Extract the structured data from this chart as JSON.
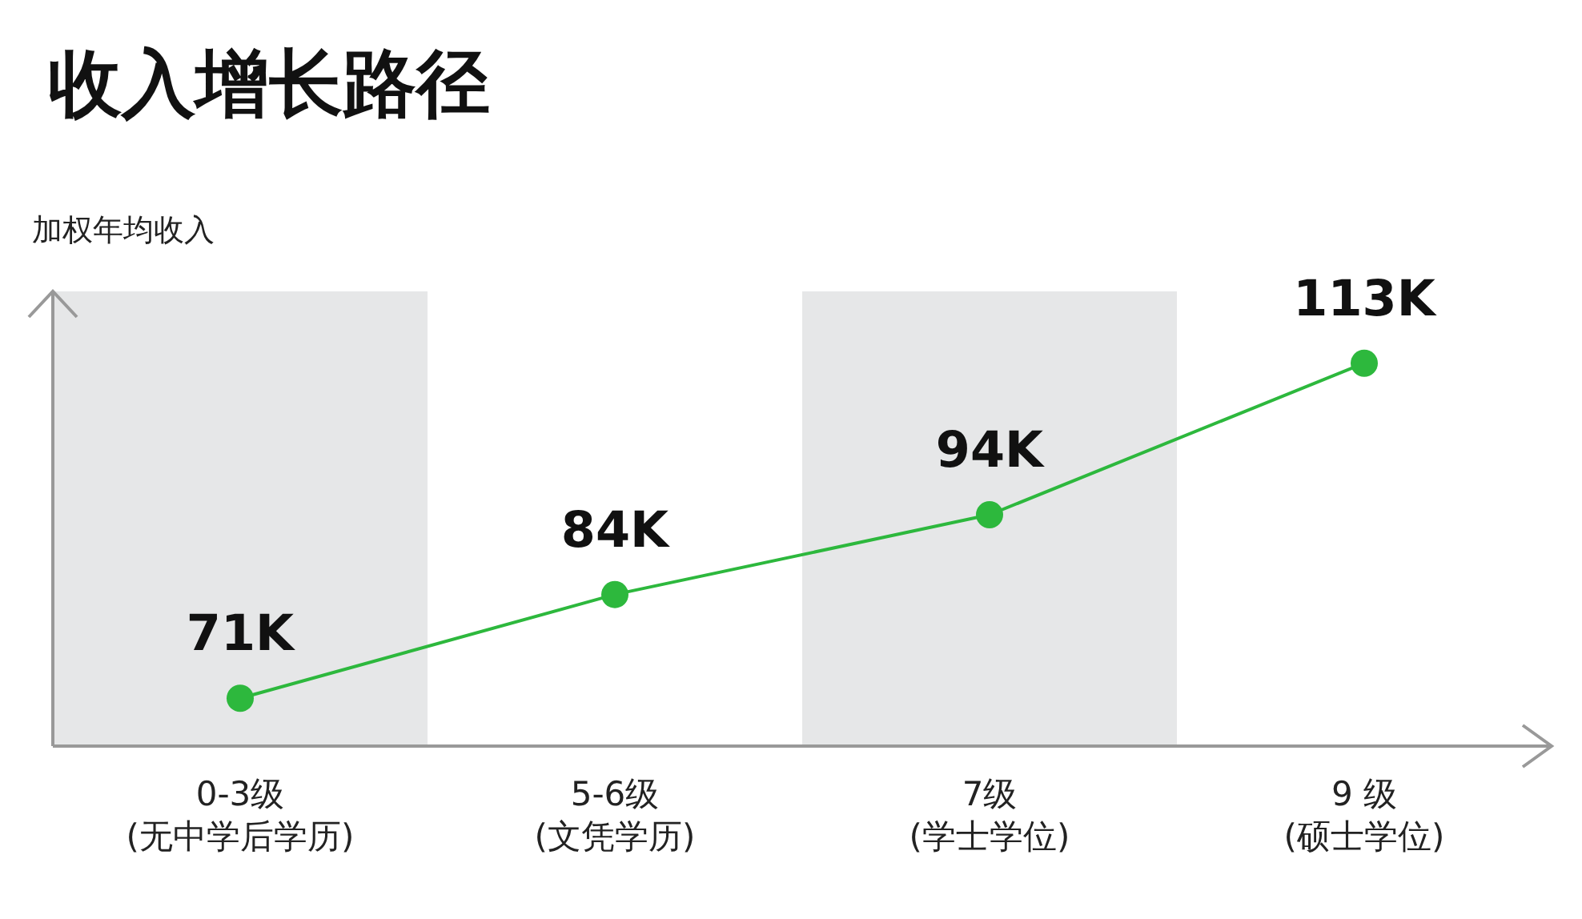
{
  "chart_data": {
    "type": "line",
    "title": "收入增长路径",
    "ylabel": "加权年均收入",
    "categories": [
      "0-3级\n(无中学后学历)",
      "5-6级\n(文凭学历)",
      "7级\n(学士学位)",
      "9 级\n(硕士学位)"
    ],
    "series": [
      {
        "color": "#2db83d",
        "values": [
          71,
          84,
          94,
          113
        ],
        "value_labels": [
          "71K",
          "84K",
          "94K",
          "113K"
        ]
      }
    ],
    "ylim": [
      65,
      122
    ],
    "marker": "circle",
    "bands": [
      {
        "axis": "x",
        "from": "0-3级\n(无中学后学历)",
        "to": "0-3级\n(无中学后学历)",
        "color": "#e6e7e8"
      },
      {
        "axis": "x",
        "from": "7级\n(学士学位)",
        "to": "7级\n(学士学位)",
        "color": "#e6e7e8"
      }
    ]
  }
}
